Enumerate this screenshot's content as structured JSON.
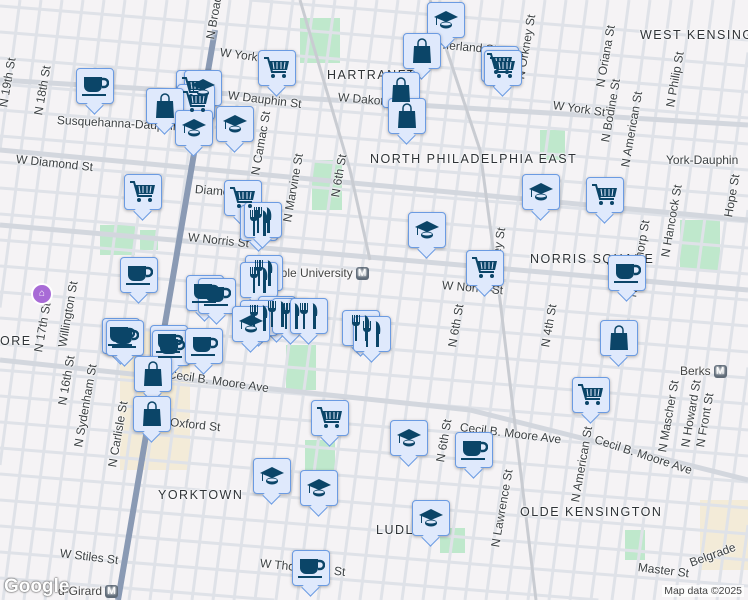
{
  "map": {
    "neighborhoods": [
      "HARTRANFT",
      "NORTH PHILADELPHIA EAST",
      "WEST KENSINGTON",
      "NORRIS SQUARE",
      "YORKTOWN",
      "OLDE KENSINGTON",
      "LUDLOW",
      "ORE"
    ],
    "streets": [
      "N Broad St",
      "W York St",
      "W Dauphin St",
      "W Dakota St",
      "Susquehanna-Dauphin",
      "W Diamond St",
      "Diamond St",
      "W Norris St",
      "N 19th St",
      "N 18th St",
      "N Camac St",
      "N Marvine St",
      "W York St",
      "York-Dauphin",
      "N Orkney St",
      "N 6th St",
      "N Orkney St",
      "N Bodine St",
      "N American St",
      "N Philip St",
      "N Oriana St",
      "W Norris St",
      "N 17th St",
      "N 16th St",
      "N Sydenham St",
      "N Carlisle St",
      "Cecil B. Moore Ave",
      "Oxford St",
      "W Stiles St",
      "W Thompson St",
      "N 6th St",
      "Cecil B. Moore Ave",
      "Cecil B. Moore Ave",
      "N American St",
      "N Hancock St",
      "N Palethorp St",
      "N Mascher St",
      "N Howard St",
      "N Front St",
      "Master St",
      "Belgrade",
      "N Lawrence St",
      "N 6th St",
      "Willington St",
      "N 4th St",
      "W Sumerland St",
      "Hope St"
    ],
    "stations": {
      "temple": "Temple University",
      "berks": "Berks",
      "girard": "d-Girard"
    },
    "metro_badge": "M",
    "markers": [
      "school",
      "shopping-bag",
      "cart",
      "cart",
      "cart",
      "coffee",
      "shopping-bag",
      "shopping-bag",
      "cart",
      "school",
      "cart",
      "shopping-bag",
      "school",
      "school",
      "cart",
      "cart",
      "restaurant",
      "restaurant",
      "school",
      "school",
      "cart",
      "cart",
      "coffee",
      "coffee",
      "restaurant",
      "restaurant",
      "coffee",
      "coffee",
      "restaurant",
      "restaurant",
      "restaurant",
      "restaurant",
      "restaurant",
      "restaurant",
      "coffee",
      "coffee",
      "coffee",
      "coffee",
      "coffee",
      "school",
      "shopping-bag",
      "shopping-bag",
      "shopping-bag",
      "cart",
      "cart",
      "school",
      "coffee",
      "school",
      "school",
      "school",
      "coffee"
    ],
    "footer": "Map data ©2025",
    "logo": "Google",
    "colors": {
      "marker_bg": "#dfe9fc",
      "marker_border": "#6b9be2",
      "icon": "#0b4568",
      "park": "#bfe8cc",
      "road": "#dfe2e8",
      "broad_st": "#8a9ab4"
    }
  }
}
